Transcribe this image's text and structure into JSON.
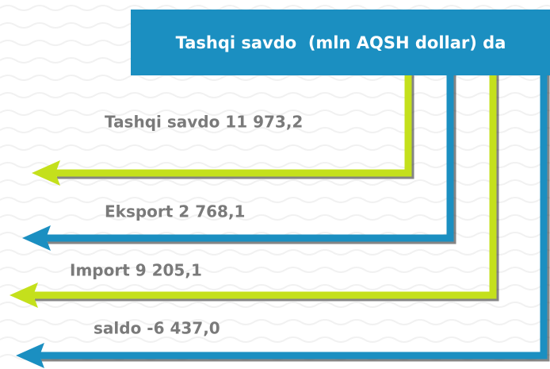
{
  "header": {
    "title": "Tashqi savdo  (mln AQSH dollar) da"
  },
  "items": [
    {
      "label": "Tashqi savdo 11 973,2"
    },
    {
      "label": "Eksport 2 768,1"
    },
    {
      "label": "Import 9 205,1"
    },
    {
      "label": "saldo -6 437,0"
    }
  ]
}
